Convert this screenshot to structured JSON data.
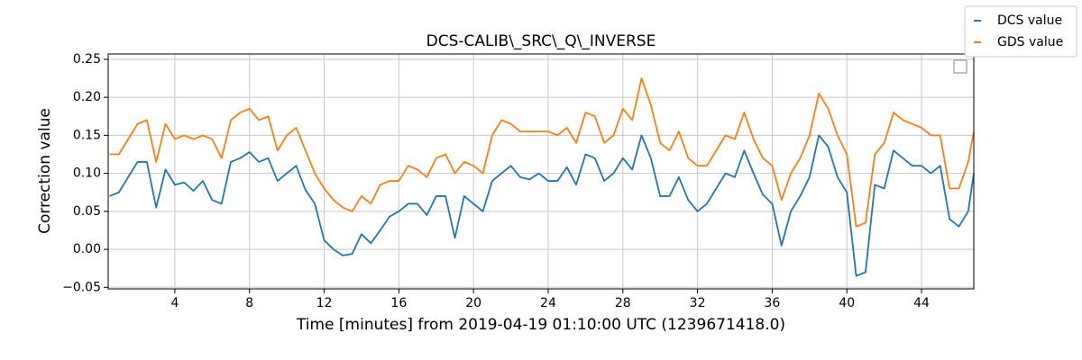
{
  "chart_data": {
    "type": "line",
    "title": "DCS-CALIB\\_SRC\\_Q\\_INVERSE",
    "xlabel": "Time [minutes] from 2019-04-19 01:10:00 UTC (1239671418.0)",
    "ylabel": "Correction value",
    "x": [
      0.5,
      1,
      1.5,
      2,
      2.5,
      3,
      3.5,
      4,
      4.5,
      5,
      5.5,
      6,
      6.5,
      7,
      7.5,
      8,
      8.5,
      9,
      9.5,
      10,
      10.5,
      11,
      11.5,
      12,
      12.5,
      13,
      13.5,
      14,
      14.5,
      15,
      15.5,
      16,
      16.5,
      17,
      17.5,
      18,
      18.5,
      19,
      19.5,
      20,
      20.5,
      21,
      21.5,
      22,
      22.5,
      23,
      23.5,
      24,
      24.5,
      25,
      25.5,
      26,
      26.5,
      27,
      27.5,
      28,
      28.5,
      29,
      29.5,
      30,
      30.5,
      31,
      31.5,
      32,
      32.5,
      33,
      33.5,
      34,
      34.5,
      35,
      35.5,
      36,
      36.5,
      37,
      37.5,
      38,
      38.5,
      39,
      39.5,
      40,
      40.5,
      41,
      41.5,
      42,
      42.5,
      43,
      43.5,
      44,
      44.5,
      45,
      45.5,
      46,
      46.5,
      46.8
    ],
    "series": [
      {
        "name": "DCS value",
        "color": "#1f77b4",
        "values": [
          0.07,
          0.075,
          0.095,
          0.115,
          0.115,
          0.055,
          0.105,
          0.085,
          0.088,
          0.077,
          0.09,
          0.065,
          0.06,
          0.115,
          0.12,
          0.128,
          0.115,
          0.12,
          0.09,
          0.1,
          0.11,
          0.078,
          0.06,
          0.012,
          0.0,
          -0.008,
          -0.006,
          0.02,
          0.008,
          0.025,
          0.043,
          0.05,
          0.06,
          0.06,
          0.045,
          0.07,
          0.07,
          0.015,
          0.07,
          0.06,
          0.05,
          0.09,
          0.1,
          0.11,
          0.095,
          0.092,
          0.1,
          0.09,
          0.09,
          0.108,
          0.085,
          0.125,
          0.12,
          0.09,
          0.1,
          0.12,
          0.105,
          0.15,
          0.12,
          0.07,
          0.07,
          0.095,
          0.065,
          0.05,
          0.06,
          0.08,
          0.1,
          0.095,
          0.13,
          0.1,
          0.072,
          0.06,
          0.005,
          0.05,
          0.07,
          0.095,
          0.15,
          0.135,
          0.095,
          0.075,
          -0.035,
          -0.03,
          0.085,
          0.08,
          0.13,
          0.12,
          0.11,
          0.11,
          0.1,
          0.11,
          0.04,
          0.03,
          0.05,
          0.1
        ]
      },
      {
        "name": "GDS value",
        "color": "#ff7f0e",
        "values": [
          0.125,
          0.125,
          0.145,
          0.165,
          0.17,
          0.115,
          0.165,
          0.145,
          0.15,
          0.145,
          0.15,
          0.145,
          0.12,
          0.17,
          0.18,
          0.185,
          0.17,
          0.175,
          0.13,
          0.15,
          0.16,
          0.13,
          0.1,
          0.08,
          0.065,
          0.055,
          0.05,
          0.07,
          0.06,
          0.085,
          0.09,
          0.09,
          0.11,
          0.105,
          0.095,
          0.12,
          0.125,
          0.1,
          0.115,
          0.11,
          0.1,
          0.15,
          0.17,
          0.165,
          0.155,
          0.155,
          0.155,
          0.155,
          0.15,
          0.16,
          0.14,
          0.18,
          0.175,
          0.14,
          0.15,
          0.185,
          0.17,
          0.225,
          0.19,
          0.14,
          0.13,
          0.155,
          0.12,
          0.11,
          0.11,
          0.13,
          0.15,
          0.145,
          0.18,
          0.145,
          0.12,
          0.11,
          0.065,
          0.1,
          0.12,
          0.15,
          0.205,
          0.185,
          0.15,
          0.125,
          0.03,
          0.035,
          0.125,
          0.14,
          0.18,
          0.17,
          0.165,
          0.16,
          0.15,
          0.15,
          0.08,
          0.08,
          0.115,
          0.155
        ]
      }
    ],
    "xlim": [
      0.43,
      46.8
    ],
    "ylim": [
      -0.052,
      0.257
    ],
    "xticks": [
      4,
      8,
      12,
      16,
      20,
      24,
      28,
      32,
      36,
      40,
      44
    ],
    "yticks": [
      {
        "value": -0.05,
        "label": "−0.05"
      },
      {
        "value": 0,
        "label": "0.00"
      },
      {
        "value": 0.05,
        "label": "0.05"
      },
      {
        "value": 0.1,
        "label": "0.10"
      },
      {
        "value": 0.15,
        "label": "0.15"
      },
      {
        "value": 0.2,
        "label": "0.20"
      },
      {
        "value": 0.25,
        "label": "0.25"
      }
    ],
    "grid": true,
    "legend": "upper-right-outside"
  }
}
